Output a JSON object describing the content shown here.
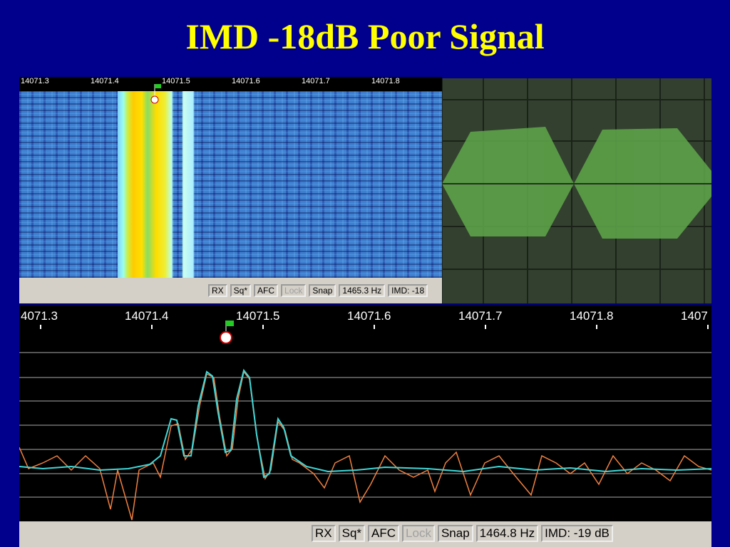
{
  "title": "IMD -18dB Poor Signal",
  "top_panel": {
    "freq_labels": [
      "14071.3",
      "14071.4",
      "14071.5",
      "14071.6",
      "14071.7",
      "14071.8"
    ],
    "status": [
      "RX",
      "Sq*",
      "AFC",
      "Lock",
      "Snap",
      "1465.3 Hz",
      "IMD: -18"
    ]
  },
  "bottom_panel": {
    "freq_labels": [
      "4071.3",
      "14071.4",
      "14071.5",
      "14071.6",
      "14071.7",
      "14071.8",
      "1407"
    ],
    "status": [
      "RX",
      "Sq*",
      "AFC",
      "Lock",
      "Snap",
      "1464.8 Hz",
      "IMD: -19 dB"
    ]
  }
}
